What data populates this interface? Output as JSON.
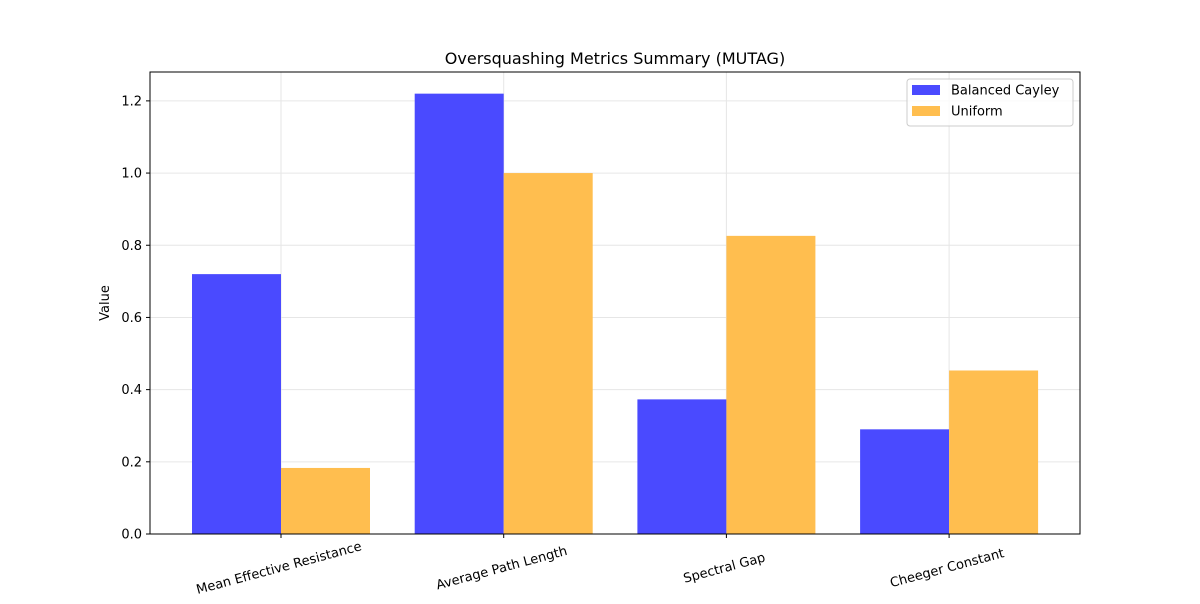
{
  "chart_data": {
    "type": "bar",
    "title": "Oversquashing Metrics Summary (MUTAG)",
    "xlabel": "",
    "ylabel": "Value",
    "categories": [
      "Mean Effective Resistance",
      "Average Path Length",
      "Spectral Gap",
      "Cheeger Constant"
    ],
    "series": [
      {
        "name": "Balanced Cayley",
        "color": "#4a4aff",
        "values": [
          0.72,
          1.22,
          0.373,
          0.29
        ]
      },
      {
        "name": "Uniform",
        "color": "#ffbe4f",
        "values": [
          0.183,
          1.0,
          0.826,
          0.453
        ]
      }
    ],
    "ylim": [
      0,
      1.28
    ],
    "yticks": [
      "0.0",
      "0.2",
      "0.4",
      "0.6",
      "0.8",
      "1.0",
      "1.2"
    ],
    "grid": true,
    "legend_position": "top-right"
  }
}
